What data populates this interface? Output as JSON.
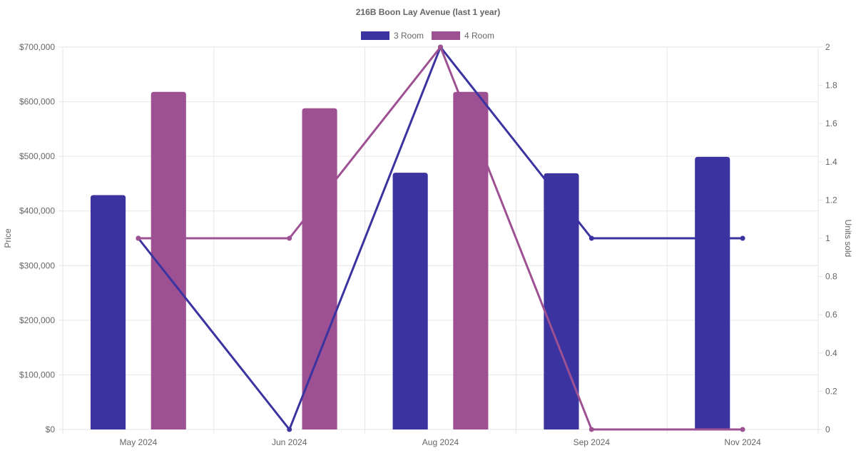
{
  "chart_data": {
    "type": "bar",
    "title": "216B Boon Lay Avenue (last 1 year)",
    "categories": [
      "May 2024",
      "Jun 2024",
      "Aug 2024",
      "Sep 2024",
      "Nov 2024"
    ],
    "legend": {
      "position": "top-center",
      "items": [
        {
          "label": "3 Room",
          "color": "#3a33a0"
        },
        {
          "label": "4 Room",
          "color": "#9e5192"
        }
      ]
    },
    "y_left": {
      "label": "Price",
      "range": [
        0,
        700000
      ],
      "ticks": [
        "$0",
        "$100,000",
        "$200,000",
        "$300,000",
        "$400,000",
        "$500,000",
        "$600,000",
        "$700,000"
      ],
      "tick_values": [
        0,
        100000,
        200000,
        300000,
        400000,
        500000,
        600000,
        700000
      ]
    },
    "y_right": {
      "label": "Units sold",
      "range": [
        0,
        2
      ],
      "ticks": [
        "0",
        "0.2",
        "0.4",
        "0.6",
        "0.8",
        "1",
        "1.2",
        "1.4",
        "1.6",
        "1.8",
        "2"
      ],
      "tick_values": [
        0,
        0.2,
        0.4,
        0.6,
        0.8,
        1,
        1.2,
        1.4,
        1.6,
        1.8,
        2
      ]
    },
    "grid": true,
    "bar_series": [
      {
        "name": "3 Room",
        "color": "#3a33a0",
        "values": [
          429000,
          null,
          470000,
          469000,
          499000
        ]
      },
      {
        "name": "4 Room",
        "color": "#9e5192",
        "values": [
          618000,
          588000,
          618000,
          null,
          null
        ]
      }
    ],
    "line_series": [
      {
        "name": "3 Room",
        "color": "#3a33a0",
        "values": [
          1,
          0,
          2,
          1,
          1
        ]
      },
      {
        "name": "4 Room",
        "color": "#9e5192",
        "values": [
          1,
          1,
          2,
          0,
          0
        ]
      }
    ]
  }
}
